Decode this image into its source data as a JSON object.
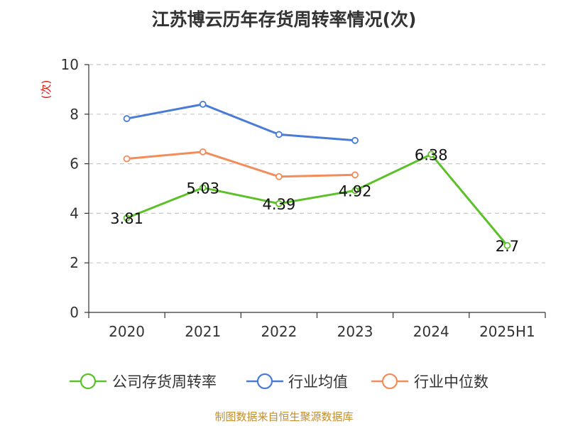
{
  "chart_data": {
    "type": "line",
    "title": "江苏博云历年存货周转率情况(次)",
    "ylabel": "(次)",
    "xlabel": "",
    "categories": [
      "2020",
      "2021",
      "2022",
      "2023",
      "2024",
      "2025H1"
    ],
    "ylim": [
      0,
      10
    ],
    "yticks": [
      0,
      2,
      4,
      6,
      8,
      10
    ],
    "grid": "horizontal-dashed",
    "legend_position": "bottom",
    "series": [
      {
        "name": "公司存货周转率",
        "color": "#5cc129",
        "values": [
          3.81,
          5.03,
          4.39,
          4.92,
          6.38,
          2.7
        ],
        "labels": [
          "3.81",
          "5.03",
          "4.39",
          "4.92",
          "6.38",
          "2.7"
        ]
      },
      {
        "name": "行业均值",
        "color": "#4a7bd6",
        "values": [
          7.82,
          8.4,
          7.18,
          6.94,
          null,
          null
        ]
      },
      {
        "name": "行业中位数",
        "color": "#f28c5a",
        "values": [
          6.2,
          6.48,
          5.48,
          5.55,
          null,
          null
        ]
      }
    ]
  },
  "source": "制图数据来自恒生聚源数据库"
}
